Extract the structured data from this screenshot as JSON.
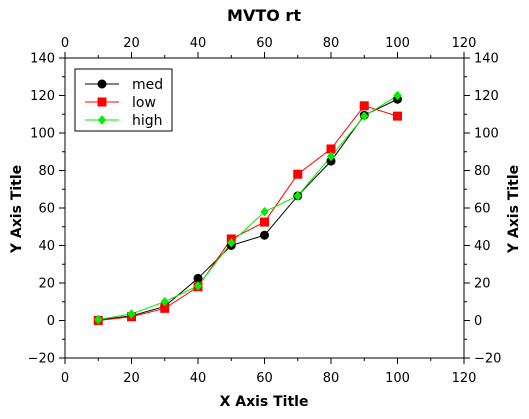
{
  "chart_data": {
    "type": "line",
    "title": "MVTO rt",
    "xlabel": "X Axis Title",
    "ylabel": "Y Axis Title",
    "ylabel_right": "Y Axis Title",
    "xlim": [
      0,
      120
    ],
    "ylim": [
      -20,
      140
    ],
    "xticks": [
      0,
      20,
      40,
      60,
      80,
      100,
      120
    ],
    "yticks": [
      -20,
      0,
      20,
      40,
      60,
      80,
      100,
      120,
      140
    ],
    "grid": false,
    "legend_position": "top-left",
    "x": [
      10,
      20,
      30,
      40,
      50,
      60,
      70,
      80,
      90,
      100
    ],
    "series": [
      {
        "name": "med",
        "color": "#000000",
        "marker": "circle",
        "values": [
          0.3,
          2.5,
          7.5,
          22.5,
          40,
          45.5,
          66.5,
          85,
          109.5,
          118
        ]
      },
      {
        "name": "low",
        "color": "#ff0000",
        "marker": "square",
        "values": [
          0,
          2,
          6.5,
          18,
          43.5,
          52.5,
          78,
          91.5,
          114.5,
          109
        ]
      },
      {
        "name": "high",
        "color": "#00ee00",
        "marker": "diamond",
        "values": [
          0.5,
          3.5,
          10,
          18.5,
          41.5,
          58,
          66.5,
          87.5,
          109,
          120
        ]
      }
    ]
  }
}
